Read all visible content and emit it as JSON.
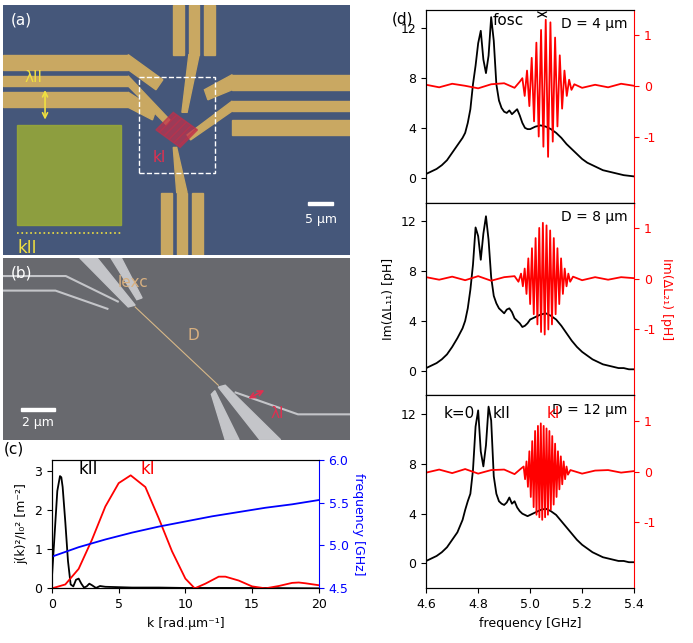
{
  "chart_data": [
    {
      "type": "line",
      "label": "(c)",
      "xlabel": "k [rad.μm⁻¹]",
      "ylabel": "j(k)²/I₀² [m⁻²]",
      "y2label": "frequency [GHz]",
      "xlim": [
        0,
        20
      ],
      "xticks": [
        0,
        5,
        10,
        15,
        20
      ],
      "ylim": [
        0,
        3.3
      ],
      "yticks": [
        0,
        1,
        2,
        3
      ],
      "y2lim": [
        4.5,
        6.0
      ],
      "y2ticks": [
        4.5,
        {
          "value": 5.0,
          "label": "5.0"
        },
        5.5,
        {
          "value": 6.0,
          "label": "6.0"
        }
      ],
      "series": [
        {
          "name": "kII",
          "color": "black",
          "x": [
            0,
            0.2,
            0.4,
            0.6,
            0.7,
            0.8,
            1.0,
            1.2,
            1.4,
            1.6,
            1.8,
            2.0,
            2.2,
            2.4,
            2.6,
            2.8,
            3.0,
            3.3,
            3.6,
            4,
            5,
            6,
            8,
            10,
            12,
            15,
            20
          ],
          "values": [
            0.3,
            1.4,
            2.5,
            2.88,
            2.85,
            2.6,
            1.7,
            0.7,
            0.1,
            0.05,
            0.22,
            0.25,
            0.12,
            0.02,
            0.05,
            0.12,
            0.08,
            0.01,
            0.06,
            0.04,
            0.03,
            0.02,
            0.02,
            0.01,
            0.01,
            0.01,
            0.0
          ]
        },
        {
          "name": "kI",
          "color": "red",
          "x": [
            0,
            1,
            2,
            3,
            4,
            5,
            5.9,
            7,
            8,
            9,
            10,
            10.7,
            11.5,
            12.5,
            13,
            14,
            15,
            16,
            17,
            18,
            18.5,
            19,
            20
          ],
          "values": [
            0,
            0.1,
            0.5,
            1.25,
            2.1,
            2.7,
            2.9,
            2.6,
            1.8,
            0.95,
            0.25,
            0.0,
            0.12,
            0.3,
            0.3,
            0.2,
            0.05,
            0.0,
            0.06,
            0.14,
            0.15,
            0.13,
            0.08
          ]
        },
        {
          "color": "blue",
          "axis": "y2",
          "x": [
            0,
            2,
            4,
            6,
            8,
            10,
            12,
            14,
            16,
            18,
            20
          ],
          "values": [
            4.87,
            4.98,
            5.07,
            5.15,
            5.22,
            5.28,
            5.34,
            5.39,
            5.44,
            5.48,
            5.53
          ]
        }
      ]
    },
    {
      "type": "line",
      "label": "(d)",
      "title": "D = 4 μm",
      "tick_labels": "y",
      "xlim": [
        4.6,
        5.4
      ],
      "xticks": [
        4.6,
        4.8,
        {
          "value": 5.0,
          "label": "5.0"
        },
        5.2,
        5.4
      ],
      "ylim": [
        -2,
        13.5
      ],
      "yticks": [
        0,
        4,
        8,
        12
      ],
      "y2lim": [
        -2.3,
        1.5
      ],
      "y2ticks": [
        -1,
        0,
        1
      ],
      "annotations": [
        {
          "text": "fosc",
          "color": "black"
        }
      ],
      "series": [
        {
          "color": "black",
          "x": [
            4.6,
            4.62,
            4.64,
            4.66,
            4.68,
            4.7,
            4.72,
            4.74,
            4.75,
            4.76,
            4.77,
            4.78,
            4.79,
            4.8,
            4.81,
            4.82,
            4.83,
            4.84,
            4.85,
            4.86,
            4.87,
            4.88,
            4.89,
            4.9,
            4.91,
            4.92,
            4.93,
            4.94,
            4.95,
            4.96,
            4.97,
            4.98,
            4.99,
            5.0,
            5.02,
            5.04,
            5.06,
            5.08,
            5.1,
            5.12,
            5.14,
            5.16,
            5.18,
            5.2,
            5.22,
            5.24,
            5.26,
            5.28,
            5.3,
            5.32,
            5.34,
            5.36,
            5.38,
            5.4
          ],
          "values": [
            0.3,
            0.5,
            0.7,
            1.0,
            1.4,
            2.0,
            2.6,
            3.2,
            3.6,
            4.4,
            5.5,
            7.5,
            9.0,
            10.8,
            11.8,
            9.5,
            8.4,
            9.8,
            12.9,
            11.0,
            7.5,
            6.2,
            5.6,
            5.3,
            5.2,
            5.4,
            5.1,
            5.3,
            5.5,
            5.0,
            4.4,
            4.0,
            3.9,
            3.9,
            4.1,
            4.2,
            4.1,
            3.9,
            3.6,
            3.2,
            2.7,
            2.3,
            1.9,
            1.5,
            1.2,
            1.0,
            0.8,
            0.6,
            0.5,
            0.4,
            0.3,
            0.2,
            0.15,
            0.1
          ]
        },
        {
          "color": "red",
          "axis": "y2",
          "x": [
            4.6,
            4.65,
            4.7,
            4.75,
            4.8,
            4.85,
            4.9,
            4.94,
            4.96,
            4.97,
            4.979,
            4.988,
            4.997,
            5.006,
            5.015,
            5.024,
            5.033,
            5.042,
            5.051,
            5.06,
            5.069,
            5.078,
            5.087,
            5.096,
            5.105,
            5.114,
            5.123,
            5.132,
            5.141,
            5.15,
            5.159,
            5.17,
            5.2,
            5.25,
            5.3,
            5.35,
            5.4
          ],
          "values": [
            0.02,
            -0.03,
            0.04,
            0.0,
            -0.05,
            0.03,
            0.05,
            -0.04,
            0.08,
            0.15,
            -0.2,
            0.3,
            -0.4,
            0.55,
            -0.7,
            0.85,
            -1.0,
            1.1,
            -1.2,
            1.3,
            -1.4,
            1.25,
            -1.1,
            0.95,
            -0.8,
            0.6,
            -0.45,
            0.3,
            -0.2,
            0.12,
            -0.08,
            0.03,
            -0.04,
            0.02,
            -0.03,
            0.04,
            0.0
          ]
        }
      ]
    },
    {
      "type": "line",
      "title": "D = 8 μm",
      "tick_labels": "y",
      "ylabel": "Im(ΔL₁₁) [pH]",
      "y2label": "Im(ΔL₂₁) [pH]",
      "xlim": [
        4.6,
        5.4
      ],
      "xticks": [
        4.6,
        4.8,
        {
          "value": 5.0,
          "label": "5.0"
        },
        5.2,
        5.4
      ],
      "ylim": [
        -2,
        13.5
      ],
      "yticks": [
        0,
        4,
        8,
        12
      ],
      "y2lim": [
        -2.3,
        1.5
      ],
      "y2ticks": [
        -1,
        0,
        1
      ],
      "series": [
        {
          "color": "black",
          "x": [
            4.6,
            4.62,
            4.64,
            4.66,
            4.68,
            4.7,
            4.72,
            4.74,
            4.75,
            4.76,
            4.77,
            4.78,
            4.79,
            4.8,
            4.81,
            4.82,
            4.83,
            4.84,
            4.85,
            4.86,
            4.87,
            4.88,
            4.89,
            4.9,
            4.91,
            4.92,
            4.93,
            4.94,
            4.95,
            4.96,
            4.97,
            4.98,
            4.99,
            5.0,
            5.02,
            5.04,
            5.06,
            5.08,
            5.1,
            5.12,
            5.14,
            5.16,
            5.18,
            5.2,
            5.22,
            5.24,
            5.26,
            5.28,
            5.3,
            5.32,
            5.34,
            5.36,
            5.38,
            5.4
          ],
          "values": [
            0.2,
            0.4,
            0.6,
            0.9,
            1.3,
            1.9,
            2.6,
            3.4,
            4.0,
            5.0,
            6.5,
            8.5,
            11.5,
            10.8,
            8.9,
            11.0,
            12.4,
            10.5,
            7.5,
            6.0,
            5.4,
            5.0,
            4.8,
            4.6,
            4.9,
            5.0,
            4.7,
            4.2,
            4.0,
            3.8,
            3.5,
            3.6,
            3.8,
            4.1,
            4.3,
            4.5,
            4.6,
            4.4,
            4.1,
            3.6,
            3.0,
            2.4,
            1.9,
            1.5,
            1.2,
            0.9,
            0.7,
            0.5,
            0.4,
            0.3,
            0.2,
            0.2,
            0.1,
            0.1
          ]
        },
        {
          "color": "red",
          "axis": "y2",
          "x": [
            4.6,
            4.65,
            4.7,
            4.75,
            4.8,
            4.85,
            4.9,
            4.94,
            4.955,
            4.965,
            4.972,
            4.979,
            4.986,
            4.993,
            5.0,
            5.007,
            5.014,
            5.021,
            5.028,
            5.035,
            5.042,
            5.049,
            5.056,
            5.063,
            5.07,
            5.077,
            5.084,
            5.091,
            5.098,
            5.105,
            5.112,
            5.119,
            5.126,
            5.133,
            5.14,
            5.147,
            5.154,
            5.165,
            5.2,
            5.25,
            5.3,
            5.35,
            5.4
          ],
          "values": [
            0.03,
            -0.02,
            0.04,
            -0.03,
            0.05,
            -0.04,
            0.03,
            0.05,
            -0.06,
            0.1,
            -0.15,
            0.2,
            -0.3,
            0.4,
            -0.5,
            0.6,
            -0.7,
            0.8,
            -0.9,
            1.0,
            -1.05,
            1.1,
            -1.1,
            1.05,
            -1.0,
            0.95,
            -0.9,
            0.8,
            -0.7,
            0.6,
            -0.5,
            0.4,
            -0.3,
            0.2,
            -0.15,
            0.1,
            -0.06,
            0.04,
            -0.03,
            0.03,
            -0.02,
            0.03,
            0.01
          ]
        }
      ]
    },
    {
      "type": "line",
      "title": "D = 12 μm",
      "xlabel": "frequency [GHz]",
      "xlim": [
        4.6,
        5.4
      ],
      "xticks": [
        4.6,
        4.8,
        {
          "value": 5.0,
          "label": "5.0"
        },
        5.2,
        5.4
      ],
      "ylim": [
        -2,
        13.5
      ],
      "yticks": [
        0,
        4,
        8,
        12
      ],
      "y2lim": [
        -2.3,
        1.5
      ],
      "y2ticks": [
        -1,
        0,
        1
      ],
      "annotations": [
        {
          "text": "k=0",
          "color": "black"
        },
        {
          "text": "kII",
          "color": "black"
        },
        {
          "text": "kI",
          "color": "red"
        }
      ],
      "series": [
        {
          "color": "black",
          "x": [
            4.6,
            4.62,
            4.64,
            4.66,
            4.68,
            4.7,
            4.72,
            4.74,
            4.75,
            4.76,
            4.77,
            4.78,
            4.79,
            4.8,
            4.81,
            4.82,
            4.83,
            4.84,
            4.85,
            4.86,
            4.87,
            4.88,
            4.89,
            4.9,
            4.91,
            4.92,
            4.93,
            4.94,
            4.95,
            4.96,
            4.97,
            4.98,
            4.99,
            5.0,
            5.02,
            5.04,
            5.06,
            5.08,
            5.1,
            5.12,
            5.14,
            5.16,
            5.18,
            5.2,
            5.22,
            5.24,
            5.26,
            5.28,
            5.3,
            5.32,
            5.34,
            5.36,
            5.38,
            5.4
          ],
          "values": [
            0.2,
            0.4,
            0.6,
            0.9,
            1.3,
            1.9,
            2.5,
            3.5,
            4.3,
            5.0,
            5.6,
            7.5,
            11.0,
            12.3,
            9.0,
            7.8,
            9.5,
            12.6,
            11.5,
            7.0,
            5.6,
            5.0,
            4.8,
            4.7,
            4.9,
            5.3,
            4.8,
            5.0,
            4.5,
            4.2,
            4.0,
            3.9,
            3.8,
            3.9,
            4.1,
            4.3,
            4.4,
            4.2,
            3.9,
            3.4,
            2.9,
            2.4,
            1.9,
            1.5,
            1.2,
            0.9,
            0.7,
            0.5,
            0.4,
            0.3,
            0.2,
            0.2,
            0.1,
            0.1
          ]
        },
        {
          "color": "red",
          "axis": "y2",
          "x": [
            4.6,
            4.65,
            4.7,
            4.75,
            4.8,
            4.85,
            4.9,
            4.94,
            4.965,
            4.975,
            4.9805,
            4.986,
            4.9915,
            4.997,
            5.0025,
            5.008,
            5.0135,
            5.019,
            5.0245,
            5.03,
            5.0355,
            5.041,
            5.0465,
            5.052,
            5.0575,
            5.063,
            5.0685,
            5.074,
            5.0795,
            5.085,
            5.0905,
            5.096,
            5.1015,
            5.107,
            5.1125,
            5.118,
            5.1235,
            5.129,
            5.1345,
            5.14,
            5.1455,
            5.155,
            5.2,
            5.25,
            5.3,
            5.35,
            5.4
          ],
          "values": [
            -0.02,
            0.04,
            -0.03,
            0.05,
            -0.04,
            0.03,
            0.04,
            -0.05,
            0.06,
            0.1,
            -0.15,
            0.2,
            -0.3,
            0.4,
            -0.5,
            0.6,
            -0.7,
            0.8,
            -0.85,
            0.9,
            -0.9,
            0.95,
            -0.95,
            0.9,
            -0.9,
            0.85,
            -0.85,
            0.8,
            -0.75,
            0.7,
            -0.65,
            0.55,
            -0.5,
            0.4,
            -0.35,
            0.3,
            -0.25,
            0.2,
            -0.15,
            0.1,
            -0.06,
            0.03,
            -0.04,
            0.02,
            0.03,
            -0.02,
            0.01
          ]
        }
      ]
    }
  ],
  "images": [
    {
      "label": "(a)",
      "texts": [
        "λII",
        "kII",
        "kI",
        "5 μm"
      ]
    },
    {
      "label": "(b)",
      "texts": [
        "lexc",
        "D",
        "2 μm",
        "λI"
      ]
    }
  ]
}
